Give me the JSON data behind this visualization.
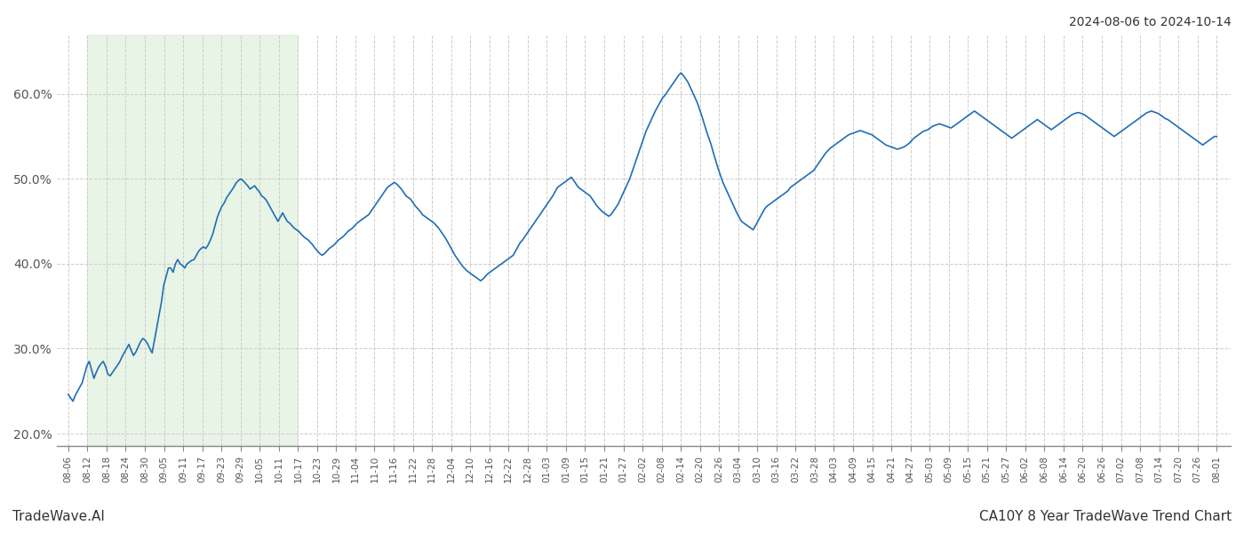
{
  "title_right": "2024-08-06 to 2024-10-14",
  "footer_left": "TradeWave.AI",
  "footer_right": "CA10Y 8 Year TradeWave Trend Chart",
  "line_color": "#1f6eb5",
  "line_width": 1.2,
  "bg_color": "#ffffff",
  "grid_color": "#cccccc",
  "shade_color": "#d6ecd2",
  "shade_alpha": 0.55,
  "ylim": [
    0.185,
    0.67
  ],
  "yticks": [
    0.2,
    0.3,
    0.4,
    0.5,
    0.6
  ],
  "ytick_labels": [
    "20.0%",
    "30.0%",
    "40.0%",
    "50.0%",
    "60.0%"
  ],
  "x_labels": [
    "08-06",
    "08-12",
    "08-18",
    "08-24",
    "08-30",
    "09-05",
    "09-11",
    "09-17",
    "09-23",
    "09-29",
    "10-05",
    "10-11",
    "10-17",
    "10-23",
    "10-29",
    "11-04",
    "11-10",
    "11-16",
    "11-22",
    "11-28",
    "12-04",
    "12-10",
    "12-16",
    "12-22",
    "12-28",
    "01-03",
    "01-09",
    "01-15",
    "01-21",
    "01-27",
    "02-02",
    "02-08",
    "02-14",
    "02-20",
    "02-26",
    "03-04",
    "03-10",
    "03-16",
    "03-22",
    "03-28",
    "04-03",
    "04-09",
    "04-15",
    "04-21",
    "04-27",
    "05-03",
    "05-09",
    "05-15",
    "05-21",
    "05-27",
    "06-02",
    "06-08",
    "06-14",
    "06-20",
    "06-26",
    "07-02",
    "07-08",
    "07-14",
    "07-20",
    "07-26",
    "08-01"
  ],
  "shade_start_label": "08-12",
  "shade_end_label": "10-17",
  "values": [
    0.246,
    0.242,
    0.238,
    0.245,
    0.25,
    0.255,
    0.26,
    0.27,
    0.28,
    0.285,
    0.275,
    0.265,
    0.272,
    0.278,
    0.282,
    0.285,
    0.279,
    0.27,
    0.268,
    0.272,
    0.276,
    0.28,
    0.284,
    0.29,
    0.295,
    0.3,
    0.305,
    0.298,
    0.292,
    0.296,
    0.302,
    0.308,
    0.312,
    0.31,
    0.306,
    0.3,
    0.295,
    0.31,
    0.325,
    0.34,
    0.355,
    0.375,
    0.385,
    0.395,
    0.395,
    0.39,
    0.4,
    0.405,
    0.4,
    0.398,
    0.395,
    0.4,
    0.402,
    0.404,
    0.405,
    0.41,
    0.415,
    0.418,
    0.42,
    0.418,
    0.422,
    0.428,
    0.435,
    0.445,
    0.455,
    0.462,
    0.468,
    0.472,
    0.478,
    0.482,
    0.486,
    0.49,
    0.495,
    0.498,
    0.5,
    0.498,
    0.495,
    0.492,
    0.488,
    0.49,
    0.492,
    0.488,
    0.485,
    0.48,
    0.478,
    0.475,
    0.47,
    0.465,
    0.46,
    0.455,
    0.45,
    0.455,
    0.46,
    0.455,
    0.45,
    0.448,
    0.445,
    0.442,
    0.44,
    0.438,
    0.435,
    0.432,
    0.43,
    0.428,
    0.425,
    0.422,
    0.418,
    0.415,
    0.412,
    0.41,
    0.412,
    0.415,
    0.418,
    0.42,
    0.422,
    0.425,
    0.428,
    0.43,
    0.432,
    0.435,
    0.438,
    0.44,
    0.442,
    0.445,
    0.448,
    0.45,
    0.452,
    0.454,
    0.456,
    0.458,
    0.462,
    0.466,
    0.47,
    0.474,
    0.478,
    0.482,
    0.486,
    0.49,
    0.492,
    0.494,
    0.496,
    0.494,
    0.491,
    0.488,
    0.484,
    0.48,
    0.478,
    0.476,
    0.472,
    0.468,
    0.465,
    0.462,
    0.458,
    0.456,
    0.454,
    0.452,
    0.45,
    0.448,
    0.445,
    0.442,
    0.438,
    0.434,
    0.43,
    0.425,
    0.42,
    0.415,
    0.41,
    0.406,
    0.402,
    0.398,
    0.395,
    0.392,
    0.39,
    0.388,
    0.386,
    0.384,
    0.382,
    0.38,
    0.382,
    0.385,
    0.388,
    0.39,
    0.392,
    0.394,
    0.396,
    0.398,
    0.4,
    0.402,
    0.404,
    0.406,
    0.408,
    0.41,
    0.415,
    0.42,
    0.425,
    0.428,
    0.432,
    0.436,
    0.44,
    0.444,
    0.448,
    0.452,
    0.456,
    0.46,
    0.464,
    0.468,
    0.472,
    0.476,
    0.48,
    0.485,
    0.49,
    0.492,
    0.494,
    0.496,
    0.498,
    0.5,
    0.502,
    0.498,
    0.494,
    0.49,
    0.488,
    0.486,
    0.484,
    0.482,
    0.48,
    0.476,
    0.472,
    0.468,
    0.465,
    0.462,
    0.46,
    0.458,
    0.456,
    0.458,
    0.462,
    0.466,
    0.47,
    0.476,
    0.482,
    0.488,
    0.494,
    0.5,
    0.508,
    0.516,
    0.524,
    0.532,
    0.54,
    0.548,
    0.556,
    0.562,
    0.568,
    0.574,
    0.58,
    0.585,
    0.59,
    0.595,
    0.598,
    0.602,
    0.606,
    0.61,
    0.614,
    0.618,
    0.622,
    0.625,
    0.622,
    0.618,
    0.614,
    0.608,
    0.602,
    0.596,
    0.59,
    0.582,
    0.574,
    0.565,
    0.556,
    0.548,
    0.54,
    0.53,
    0.521,
    0.512,
    0.504,
    0.496,
    0.49,
    0.484,
    0.478,
    0.472,
    0.466,
    0.46,
    0.455,
    0.45,
    0.448,
    0.446,
    0.444,
    0.442,
    0.44,
    0.445,
    0.45,
    0.455,
    0.46,
    0.465,
    0.468,
    0.47,
    0.472,
    0.474,
    0.476,
    0.478,
    0.48,
    0.482,
    0.484,
    0.486,
    0.49,
    0.492,
    0.494,
    0.496,
    0.498,
    0.5,
    0.502,
    0.504,
    0.506,
    0.508,
    0.51,
    0.514,
    0.518,
    0.522,
    0.526,
    0.53,
    0.533,
    0.536,
    0.538,
    0.54,
    0.542,
    0.544,
    0.546,
    0.548,
    0.55,
    0.552,
    0.553,
    0.554,
    0.555,
    0.556,
    0.557,
    0.556,
    0.555,
    0.554,
    0.553,
    0.552,
    0.55,
    0.548,
    0.546,
    0.544,
    0.542,
    0.54,
    0.539,
    0.538,
    0.537,
    0.536,
    0.535,
    0.536,
    0.537,
    0.538,
    0.54,
    0.542,
    0.545,
    0.548,
    0.55,
    0.552,
    0.554,
    0.556,
    0.557,
    0.558,
    0.56,
    0.562,
    0.563,
    0.564,
    0.565,
    0.564,
    0.563,
    0.562,
    0.561,
    0.56,
    0.562,
    0.564,
    0.566,
    0.568,
    0.57,
    0.572,
    0.574,
    0.576,
    0.578,
    0.58,
    0.578,
    0.576,
    0.574,
    0.572,
    0.57,
    0.568,
    0.566,
    0.564,
    0.562,
    0.56,
    0.558,
    0.556,
    0.554,
    0.552,
    0.55,
    0.548,
    0.55,
    0.552,
    0.554,
    0.556,
    0.558,
    0.56,
    0.562,
    0.564,
    0.566,
    0.568,
    0.57,
    0.568,
    0.566,
    0.564,
    0.562,
    0.56,
    0.558,
    0.56,
    0.562,
    0.564,
    0.566,
    0.568,
    0.57,
    0.572,
    0.574,
    0.576,
    0.577,
    0.578,
    0.578,
    0.577,
    0.576,
    0.574,
    0.572,
    0.57,
    0.568,
    0.566,
    0.564,
    0.562,
    0.56,
    0.558,
    0.556,
    0.554,
    0.552,
    0.55,
    0.552,
    0.554,
    0.556,
    0.558,
    0.56,
    0.562,
    0.564,
    0.566,
    0.568,
    0.57,
    0.572,
    0.574,
    0.576,
    0.578,
    0.579,
    0.58,
    0.579,
    0.578,
    0.577,
    0.575,
    0.573,
    0.571,
    0.57,
    0.568,
    0.566,
    0.564,
    0.562,
    0.56,
    0.558,
    0.556,
    0.554,
    0.552,
    0.55,
    0.548,
    0.546,
    0.544,
    0.542,
    0.54,
    0.542,
    0.544,
    0.546,
    0.548,
    0.55,
    0.55
  ]
}
